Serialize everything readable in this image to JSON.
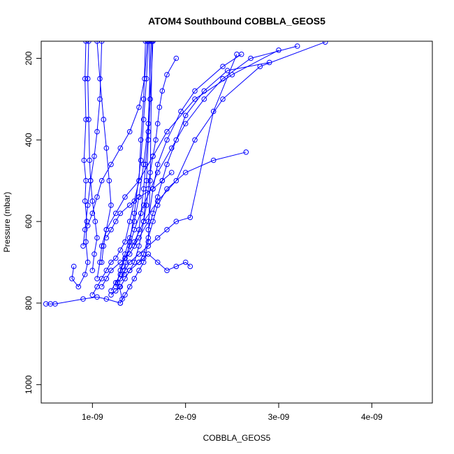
{
  "chart_data": {
    "type": "line",
    "title": "ATOM4 Southbound COBBLA_GEOS5",
    "xlabel": "COBBLA_GEOS5",
    "ylabel": "Pressure (mbar)",
    "xlim": [
      4.5e-10,
      4.65e-09
    ],
    "ylim": [
      1045,
      158
    ],
    "y_reversed": true,
    "xticks": [
      1e-09,
      2e-09,
      3e-09,
      4e-09
    ],
    "xtick_labels": [
      "1e-09",
      "2e-09",
      "3e-09",
      "4e-09"
    ],
    "yticks": [
      200,
      400,
      600,
      800,
      1000
    ],
    "ytick_labels": [
      "200",
      "400",
      "600",
      "800",
      "1000"
    ],
    "grid": false,
    "marker": "open-circle",
    "series_color": "#0000ff",
    "series": [
      {
        "x": [
          5e-10,
          5.5e-10,
          6e-10,
          9e-10,
          1.05e-09,
          1.15e-09,
          1.3e-09,
          1.32e-09,
          1.29e-09,
          1.27e-09,
          1.34e-09,
          1.36e-09,
          1.4e-09,
          1.45e-09,
          1.52e-09,
          1.55e-09,
          1.58e-09,
          1.6e-09
        ],
        "y": [
          802,
          802,
          802,
          790,
          785,
          790,
          800,
          790,
          760,
          750,
          730,
          700,
          650,
          580,
          450,
          350,
          250,
          158
        ]
      },
      {
        "x": [
          8e-10,
          7.8e-10,
          8.5e-10,
          9.2e-10,
          9.5e-10,
          9.3e-10,
          9.4e-10,
          9.2e-10,
          9.3e-10,
          9.1e-10,
          9.3e-10,
          9.2e-10,
          9.3e-10
        ],
        "y": [
          710,
          740,
          760,
          730,
          700,
          650,
          600,
          550,
          500,
          450,
          350,
          250,
          158
        ]
      },
      {
        "x": [
          1e-09,
          1.05e-09,
          1.1e-09,
          1.15e-09,
          1.2e-09,
          1.25e-09,
          1.3e-09,
          1.35e-09,
          1.4e-09,
          1.45e-09,
          1.5e-09,
          1.52e-09,
          1.55e-09,
          1.57e-09
        ],
        "y": [
          780,
          760,
          740,
          720,
          700,
          690,
          670,
          650,
          600,
          550,
          500,
          400,
          300,
          158
        ]
      },
      {
        "x": [
          1.2e-09,
          1.25e-09,
          1.3e-09,
          1.32e-09,
          1.35e-09,
          1.45e-09,
          1.55e-09,
          1.7e-09,
          1.9e-09,
          2.1e-09,
          2.4e-09,
          2.8e-09,
          3.5e-09
        ],
        "y": [
          770,
          750,
          730,
          710,
          690,
          650,
          600,
          550,
          500,
          400,
          300,
          220,
          160
        ]
      },
      {
        "x": [
          1.1e-09,
          1.15e-09,
          1.2e-09,
          1.3e-09,
          1.4e-09,
          1.5e-09,
          1.6e-09,
          1.65e-09,
          1.7e-09,
          1.8e-09,
          1.95e-09,
          2.1e-09,
          2.4e-09,
          2.6e-09
        ],
        "y": [
          760,
          740,
          720,
          700,
          680,
          640,
          600,
          520,
          460,
          400,
          330,
          280,
          220,
          190
        ]
      },
      {
        "x": [
          1.3e-09,
          1.35e-09,
          1.4e-09,
          1.5e-09,
          1.6e-09,
          1.7e-09,
          1.8e-09,
          1.9e-09,
          2.05e-09,
          2.3e-09,
          2.55e-09
        ],
        "y": [
          740,
          720,
          700,
          680,
          660,
          640,
          620,
          600,
          590,
          330,
          190
        ]
      },
      {
        "x": [
          1.2e-09,
          1.25e-09,
          1.3e-09,
          1.35e-09,
          1.4e-09,
          1.45e-09,
          1.5e-09,
          1.55e-09,
          1.58e-09,
          1.6e-09,
          1.62e-09,
          1.61e-09
        ],
        "y": [
          780,
          770,
          760,
          740,
          720,
          700,
          660,
          600,
          500,
          400,
          300,
          158
        ]
      },
      {
        "x": [
          1.4e-09,
          1.5e-09,
          1.55e-09,
          1.6e-09,
          1.65e-09,
          1.7e-09,
          1.8e-09,
          2e-09,
          2.3e-09,
          2.65e-09
        ],
        "y": [
          720,
          700,
          680,
          640,
          600,
          560,
          520,
          480,
          450,
          430
        ]
      },
      {
        "x": [
          1.5e-09,
          1.55e-09,
          1.6e-09,
          1.7e-09,
          1.8e-09,
          1.9e-09,
          2e-09,
          2.05e-09
        ],
        "y": [
          700,
          690,
          680,
          700,
          720,
          710,
          700,
          710
        ]
      },
      {
        "x": [
          1e-09,
          1.02e-09,
          1.05e-09,
          1.03e-09,
          1e-09,
          9.8e-10,
          9.7e-10,
          9.6e-10,
          9.5e-10,
          9.6e-10
        ],
        "y": [
          720,
          680,
          640,
          600,
          550,
          500,
          450,
          350,
          250,
          158
        ]
      },
      {
        "x": [
          1.1e-09,
          1.12e-09,
          1.15e-09,
          1.2e-09,
          1.18e-09,
          1.15e-09,
          1.12e-09,
          1.08e-09,
          1.05e-09
        ],
        "y": [
          700,
          660,
          620,
          560,
          500,
          420,
          350,
          250,
          158
        ]
      },
      {
        "x": [
          1.25e-09,
          1.3e-09,
          1.35e-09,
          1.4e-09,
          1.45e-09,
          1.5e-09,
          1.55e-09,
          1.6e-09,
          1.63e-09
        ],
        "y": [
          760,
          720,
          680,
          640,
          600,
          540,
          460,
          360,
          158
        ]
      },
      {
        "x": [
          1.6e-09,
          1.65e-09,
          1.7e-09,
          1.75e-09,
          1.8e-09,
          1.9e-09,
          2e-09,
          2.2e-09,
          2.45e-09,
          2.9e-09
        ],
        "y": [
          620,
          580,
          540,
          500,
          460,
          400,
          340,
          280,
          230,
          210
        ]
      },
      {
        "x": [
          9.5e-10,
          1e-09,
          1.05e-09,
          1.1e-09,
          1.2e-09,
          1.3e-09,
          1.4e-09,
          1.5e-09,
          1.56e-09,
          1.59e-09
        ],
        "y": [
          610,
          580,
          540,
          500,
          460,
          420,
          380,
          320,
          250,
          158
        ]
      },
      {
        "x": [
          1.3e-09,
          1.35e-09,
          1.4e-09,
          1.45e-09,
          1.5e-09,
          1.55e-09,
          1.6e-09,
          1.62e-09,
          1.64e-09
        ],
        "y": [
          800,
          780,
          760,
          740,
          720,
          700,
          650,
          500,
          158
        ]
      },
      {
        "x": [
          1.05e-09,
          1.08e-09,
          1.1e-09,
          1.15e-09,
          1.25e-09,
          1.35e-09,
          1.5e-09,
          1.65e-09,
          1.8e-09,
          2.1e-09,
          2.5e-09,
          3e-09
        ],
        "y": [
          740,
          700,
          660,
          620,
          580,
          540,
          500,
          440,
          380,
          300,
          240,
          180
        ]
      },
      {
        "x": [
          1.55e-09,
          1.58e-09,
          1.6e-09,
          1.62e-09,
          1.65e-09,
          1.68e-09,
          1.7e-09,
          1.72e-09,
          1.75e-09,
          1.8e-09,
          1.9e-09
        ],
        "y": [
          600,
          560,
          520,
          480,
          440,
          400,
          360,
          320,
          280,
          240,
          200
        ]
      },
      {
        "x": [
          1.45e-09,
          1.5e-09,
          1.52e-09,
          1.55e-09,
          1.57e-09,
          1.6e-09,
          1.62e-09,
          1.65e-09
        ],
        "y": [
          660,
          620,
          580,
          520,
          460,
          380,
          300,
          158
        ]
      },
      {
        "x": [
          1.15e-09,
          1.2e-09,
          1.25e-09,
          1.3e-09,
          1.4e-09,
          1.5e-09,
          1.65e-09,
          1.75e-09,
          1.85e-09
        ],
        "y": [
          640,
          620,
          600,
          580,
          560,
          540,
          520,
          500,
          480
        ]
      },
      {
        "x": [
          9e-10,
          9.2e-10,
          9.5e-10,
          9.8e-10,
          1.02e-09,
          1.05e-09,
          1.08e-09,
          1.1e-09
        ],
        "y": [
          660,
          620,
          560,
          500,
          440,
          380,
          300,
          158
        ]
      },
      {
        "x": [
          1.35e-09,
          1.4e-09,
          1.45e-09,
          1.55e-09,
          1.7e-09,
          1.85e-09,
          2e-09,
          2.2e-09,
          2.4e-09,
          2.7e-09,
          3.2e-09
        ],
        "y": [
          690,
          660,
          620,
          560,
          480,
          420,
          360,
          300,
          250,
          200,
          170
        ]
      }
    ]
  }
}
